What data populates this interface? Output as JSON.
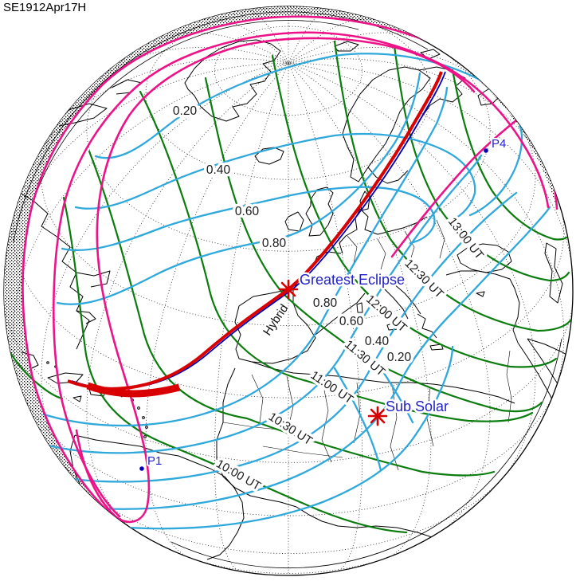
{
  "map": {
    "title": "SE1912Apr17H",
    "eclipse_type_label": "Hybrid",
    "points": {
      "greatest_eclipse": "Greatest Eclipse",
      "sub_solar": "Sub Solar",
      "p1": "P1",
      "p4": "P4"
    },
    "magnitude_contours": {
      "north": [
        "0.20",
        "0.40",
        "0.60",
        "0.80"
      ],
      "south": [
        "0.80",
        "0.60",
        "0.40",
        "0.20"
      ]
    },
    "time_contours": [
      "10:00 UT",
      "10:30 UT",
      "11:00 UT",
      "11:30 UT",
      "12:00 UT",
      "12:30 UT",
      "13:00 UT"
    ],
    "colors": {
      "penumbral_limit_magenta": "#EE1289",
      "magnitude_contour_cyan": "#2FA8DC",
      "time_contour_green": "#0B7C0E",
      "central_path_red": "#D80000",
      "path_limit_blue": "#0000B8",
      "label_blue": "#2222CC",
      "coastline_black": "#000000"
    }
  }
}
